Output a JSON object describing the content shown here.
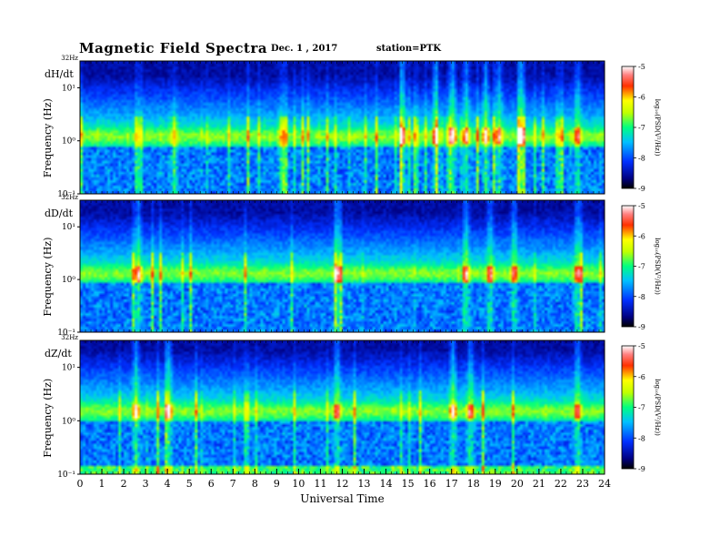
{
  "header": {
    "title": "Magnetic  Field  Spectra",
    "date": "Dec. 1  , 2017",
    "station": "station=PTK"
  },
  "chart_data": [
    {
      "type": "heatmap",
      "component": "dH/dt",
      "ylabel": "Frequency  (Hz)",
      "top_freq_label": "32Hz",
      "y_ticks": [
        "10⁻¹",
        "10⁰",
        "10¹"
      ],
      "y_scale": "log",
      "ylim_hz": [
        0.1,
        32
      ],
      "xlim_ut_hours": [
        0,
        24
      ],
      "colorbar": {
        "label": "log₁₀(PSD(V²/Hz))",
        "ticks": [
          "-5",
          "-6",
          "-7",
          "-8",
          "-9"
        ],
        "range": [
          -9,
          -5
        ]
      },
      "features": {
        "band_center_hz": 1.2,
        "bursts_ut": [
          14.7,
          16.2,
          17.0,
          17.6,
          18.5,
          19.1,
          20.1,
          22.7
        ]
      }
    },
    {
      "type": "heatmap",
      "component": "dD/dt",
      "ylabel": "Frequency  (Hz)",
      "top_freq_label": "32Hz",
      "y_ticks": [
        "10⁻¹",
        "10⁰",
        "10¹"
      ],
      "y_scale": "log",
      "ylim_hz": [
        0.1,
        32
      ],
      "xlim_ut_hours": [
        0,
        24
      ],
      "colorbar": {
        "label": "log₁₀(PSD(V²/Hz))",
        "ticks": [
          "-5",
          "-6",
          "-7",
          "-8",
          "-9"
        ],
        "range": [
          -9,
          -5
        ]
      },
      "features": {
        "band_center_hz": 1.3,
        "bursts_ut": [
          2.6,
          11.7,
          17.6,
          18.7,
          19.8,
          22.7
        ]
      }
    },
    {
      "type": "heatmap",
      "component": "dZ/dt",
      "ylabel": "Frequency  (Hz)",
      "top_freq_label": "32Hz",
      "y_ticks": [
        "10⁻¹",
        "10⁰",
        "10¹"
      ],
      "y_scale": "log",
      "ylim_hz": [
        0.1,
        32
      ],
      "xlim_ut_hours": [
        0,
        24
      ],
      "colorbar": {
        "label": "log₁₀(PSD(V²/Hz))",
        "ticks": [
          "-5",
          "-6",
          "-7",
          "-8",
          "-9"
        ],
        "range": [
          -9,
          -5
        ]
      },
      "features": {
        "band_center_hz": 1.5,
        "bursts_ut": [
          2.5,
          4.0,
          11.7,
          17.0,
          17.8,
          22.7
        ]
      }
    }
  ],
  "x_axis": {
    "label": "Universal Time",
    "ticks": [
      "0",
      "1",
      "2",
      "3",
      "4",
      "5",
      "6",
      "7",
      "8",
      "9",
      "10",
      "11",
      "12",
      "13",
      "14",
      "15",
      "16",
      "17",
      "18",
      "19",
      "20",
      "21",
      "22",
      "23",
      "24"
    ]
  }
}
